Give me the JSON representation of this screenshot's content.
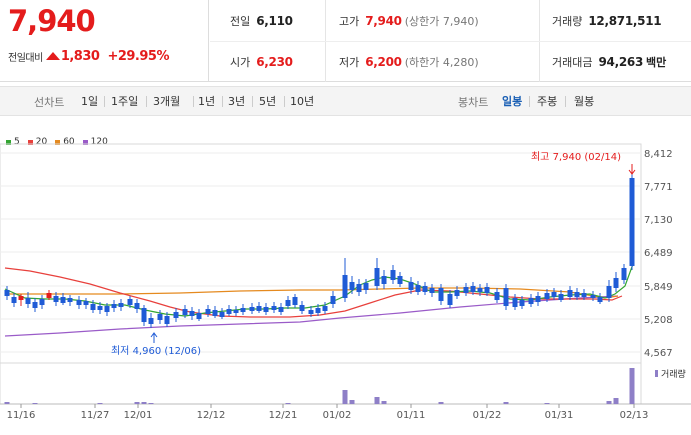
{
  "summary": {
    "current_price": "7,940",
    "change_label": "전일대비",
    "change_value": "1,830",
    "change_pct": "+29.95%",
    "prev_label": "전일",
    "prev_value": "6,110",
    "open_label": "시가",
    "open_value": "6,230",
    "high_label": "고가",
    "high_value": "7,940",
    "high_note": "(상한가 7,940)",
    "low_label": "저가",
    "low_value": "6,200",
    "low_note": "(하한가 4,280)",
    "volume_label": "거래량",
    "volume_value": "12,871,511",
    "amount_label": "거래대금",
    "amount_value": "94,263",
    "amount_unit": "백만"
  },
  "tabs": {
    "line_label": "선차트",
    "line_periods": [
      "1일",
      "1주일",
      "3개월",
      "1년",
      "3년",
      "5년",
      "10년"
    ],
    "candle_label": "봉차트",
    "candle_periods": [
      "일봉",
      "주봉",
      "월봉"
    ],
    "active_candle": "일봉"
  },
  "colors": {
    "up": "#e41c1c",
    "down": "#1f5bd6",
    "ma5": "#33a532",
    "ma20": "#e8403c",
    "ma60": "#e58a1f",
    "ma120": "#9a5bc8",
    "volume": "#8e7fc7"
  },
  "chart_data": {
    "type": "candlestick",
    "legend": [
      "5",
      "20",
      "60",
      "120"
    ],
    "y_ticks": [
      "8,412",
      "7,771",
      "7,130",
      "6,489",
      "5,849",
      "5,208",
      "4,567"
    ],
    "ylim": [
      4567,
      8412
    ],
    "x_ticks": [
      "11/16",
      "11/27",
      "12/01",
      "12/12",
      "12/21",
      "01/02",
      "01/11",
      "01/22",
      "01/31",
      "02/13"
    ],
    "max_label": "최고 7,940 (02/14)",
    "min_label": "최저 4,960 (12/06)",
    "volume_label": "거래량"
  }
}
